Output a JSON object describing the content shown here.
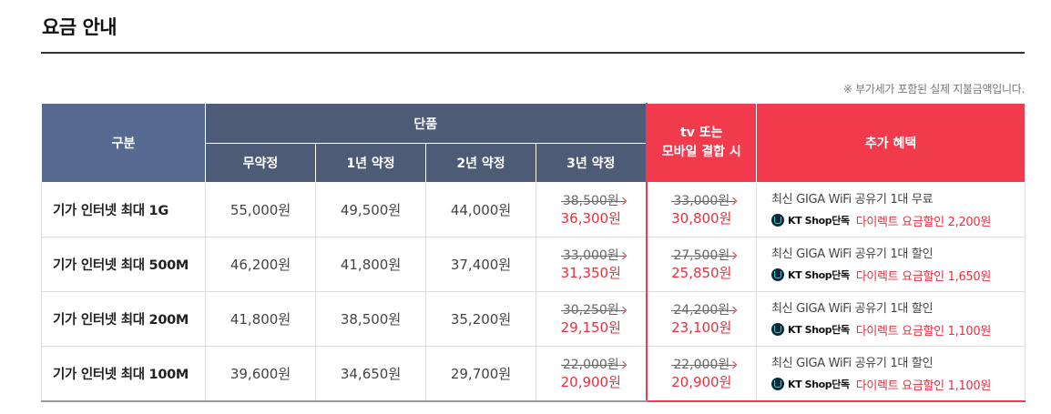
{
  "title": "요금 안내",
  "note": "※ 부가세가 포함된 실제 지불금액입니다.",
  "header": {
    "gubun": "구분",
    "single": "단품",
    "sub": [
      "무약정",
      "1년 약정",
      "2년 약정",
      "3년 약정"
    ],
    "combo_line1": "tv 또는",
    "combo_line2": "모바일 결합 시",
    "extra": "추가 혜택"
  },
  "rows": [
    {
      "name": "기가 인터넷 최대 1G",
      "p0": "55,000원",
      "p1": "49,500원",
      "p2": "44,000원",
      "p3_orig": "38,500원",
      "p3_sale": "36,300원",
      "combo_orig": "33,000원",
      "combo_sale": "30,800원",
      "benefit": "최신 GIGA WiFi 공유기 1대 무료",
      "kt_label": "KT Shop단독",
      "discount": "다이렉트 요금할인 2,200원"
    },
    {
      "name": "기가 인터넷 최대 500M",
      "p0": "46,200원",
      "p1": "41,800원",
      "p2": "37,400원",
      "p3_orig": "33,000원",
      "p3_sale": "31,350원",
      "combo_orig": "27,500원",
      "combo_sale": "25,850원",
      "benefit": "최신 GIGA WiFi 공유기 1대 할인",
      "kt_label": "KT Shop단독",
      "discount": "다이렉트 요금할인 1,650원"
    },
    {
      "name": "기가 인터넷 최대 200M",
      "p0": "41,800원",
      "p1": "38,500원",
      "p2": "35,200원",
      "p3_orig": "30,250원",
      "p3_sale": "29,150원",
      "combo_orig": "24,200원",
      "combo_sale": "23,100원",
      "benefit": "최신 GIGA WiFi 공유기 1대 할인",
      "kt_label": "KT Shop단독",
      "discount": "다이렉트 요금할인 1,100원"
    },
    {
      "name": "기가 인터넷 최대 100M",
      "p0": "39,600원",
      "p1": "34,650원",
      "p2": "29,700원",
      "p3_orig": "22,000원",
      "p3_sale": "20,900원",
      "combo_orig": "22,000원",
      "combo_sale": "20,900원",
      "benefit": "최신 GIGA WiFi 공유기 1대 할인",
      "kt_label": "KT Shop단독",
      "discount": "다이렉트 요금할인 1,100원"
    }
  ]
}
